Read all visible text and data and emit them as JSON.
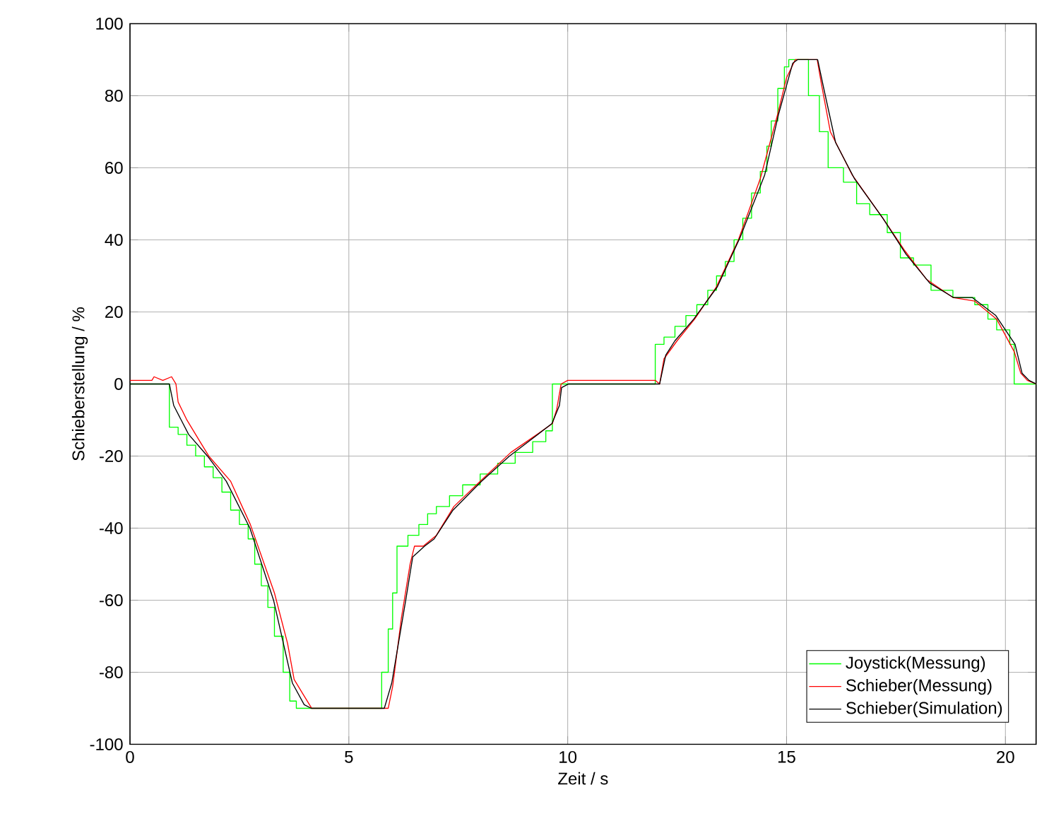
{
  "chart_data": {
    "type": "line",
    "xlabel": "Zeit / s",
    "ylabel": "Schieberstellung / %",
    "xlim": [
      0,
      20.7
    ],
    "ylim": [
      -100,
      100
    ],
    "xticks": [
      0,
      5,
      10,
      15,
      20
    ],
    "yticks": [
      -100,
      -80,
      -60,
      -40,
      -20,
      0,
      20,
      40,
      60,
      80,
      100
    ],
    "grid": true,
    "legend": "bottom right",
    "line_style": "solid",
    "series": [
      {
        "name": "Joystick(Messung)",
        "color": "#00ff00",
        "type": "step",
        "x": [
          0,
          0.9,
          1.1,
          1.3,
          1.5,
          1.7,
          1.9,
          2.1,
          2.3,
          2.5,
          2.7,
          2.85,
          3.0,
          3.15,
          3.3,
          3.5,
          3.65,
          3.8,
          5.75,
          5.9,
          6.0,
          6.1,
          6.35,
          6.6,
          6.8,
          7.0,
          7.3,
          7.6,
          8.0,
          8.4,
          8.8,
          9.2,
          9.5,
          9.65,
          12.0,
          12.2,
          12.45,
          12.7,
          12.95,
          13.2,
          13.4,
          13.6,
          13.8,
          14.0,
          14.2,
          14.4,
          14.55,
          14.65,
          14.8,
          14.95,
          15.05,
          15.5,
          15.75,
          15.95,
          16.3,
          16.6,
          16.9,
          17.3,
          17.6,
          17.9,
          18.3,
          18.8,
          19.3,
          19.6,
          19.8,
          20.1,
          20.2,
          20.7
        ],
        "values": [
          0,
          -12,
          -14,
          -17,
          -20,
          -23,
          -26,
          -30,
          -35,
          -39,
          -43,
          -50,
          -56,
          -62,
          -70,
          -80,
          -88,
          -90,
          -80,
          -68,
          -58,
          -45,
          -42,
          -39,
          -36,
          -34,
          -31,
          -28,
          -25,
          -22,
          -19,
          -16,
          -13,
          0,
          11,
          13,
          16,
          19,
          22,
          26,
          30,
          34,
          40,
          46,
          53,
          59,
          66,
          73,
          82,
          88,
          90,
          80,
          70,
          60,
          56,
          50,
          47,
          42,
          35,
          33,
          26,
          24,
          22,
          18,
          15,
          11,
          0,
          0
        ]
      },
      {
        "name": "Schieber(Messung)",
        "color": "#ff0000",
        "x": [
          0,
          0.5,
          0.55,
          0.75,
          0.95,
          1.05,
          1.1,
          1.3,
          1.6,
          1.8,
          2.3,
          2.75,
          3.3,
          3.6,
          3.75,
          3.95,
          4.15,
          5.9,
          6.0,
          6.2,
          6.4,
          6.5,
          6.7,
          7.0,
          7.4,
          8.0,
          8.7,
          9.3,
          9.65,
          9.75,
          9.85,
          10.0,
          12.0,
          12.1,
          12.2,
          12.5,
          12.9,
          13.4,
          13.9,
          14.4,
          14.8,
          15.0,
          15.2,
          15.7,
          15.8,
          16.0,
          16.5,
          17.2,
          17.7,
          18.2,
          18.8,
          19.3,
          19.8,
          20.2,
          20.35,
          20.5,
          20.7
        ],
        "values": [
          1,
          1,
          2,
          1,
          2,
          0,
          -5,
          -10,
          -16,
          -20,
          -27,
          -39,
          -58,
          -72,
          -82,
          -86,
          -90,
          -90,
          -84,
          -65,
          -50,
          -45,
          -45,
          -42,
          -34,
          -27,
          -19,
          -14,
          -11,
          -7,
          0,
          1,
          1,
          0,
          7,
          12,
          18,
          27,
          40,
          57,
          75,
          85,
          90,
          90,
          83,
          70,
          58,
          46,
          37,
          29,
          24,
          23,
          18,
          9,
          3,
          1,
          0
        ]
      },
      {
        "name": "Schieber(Simulation)",
        "color": "#000000",
        "x": [
          0,
          0.9,
          1.0,
          1.34,
          1.77,
          2.2,
          2.74,
          3.28,
          3.71,
          3.98,
          4.14,
          5.81,
          5.98,
          6.3,
          6.46,
          6.73,
          6.95,
          7.38,
          8.03,
          8.67,
          9.21,
          9.64,
          9.81,
          9.86,
          10.02,
          12.1,
          12.24,
          12.45,
          12.88,
          13.42,
          13.95,
          14.5,
          14.82,
          15.14,
          15.25,
          15.71,
          15.85,
          16.12,
          16.55,
          17.2,
          17.73,
          18.27,
          18.81,
          19.24,
          19.78,
          20.22,
          20.38,
          20.54,
          20.7
        ],
        "values": [
          0,
          0,
          -6,
          -14,
          -20,
          -27,
          -40,
          -60,
          -83,
          -89,
          -90,
          -90,
          -83,
          -60,
          -48,
          -45,
          -43,
          -35,
          -27,
          -20,
          -15,
          -11,
          -6,
          -1,
          0,
          0,
          8,
          12,
          18,
          27,
          41,
          58,
          75,
          89,
          90,
          90,
          82,
          67,
          57,
          46,
          36,
          28,
          24,
          24,
          19,
          11,
          3,
          1,
          0
        ]
      }
    ]
  }
}
